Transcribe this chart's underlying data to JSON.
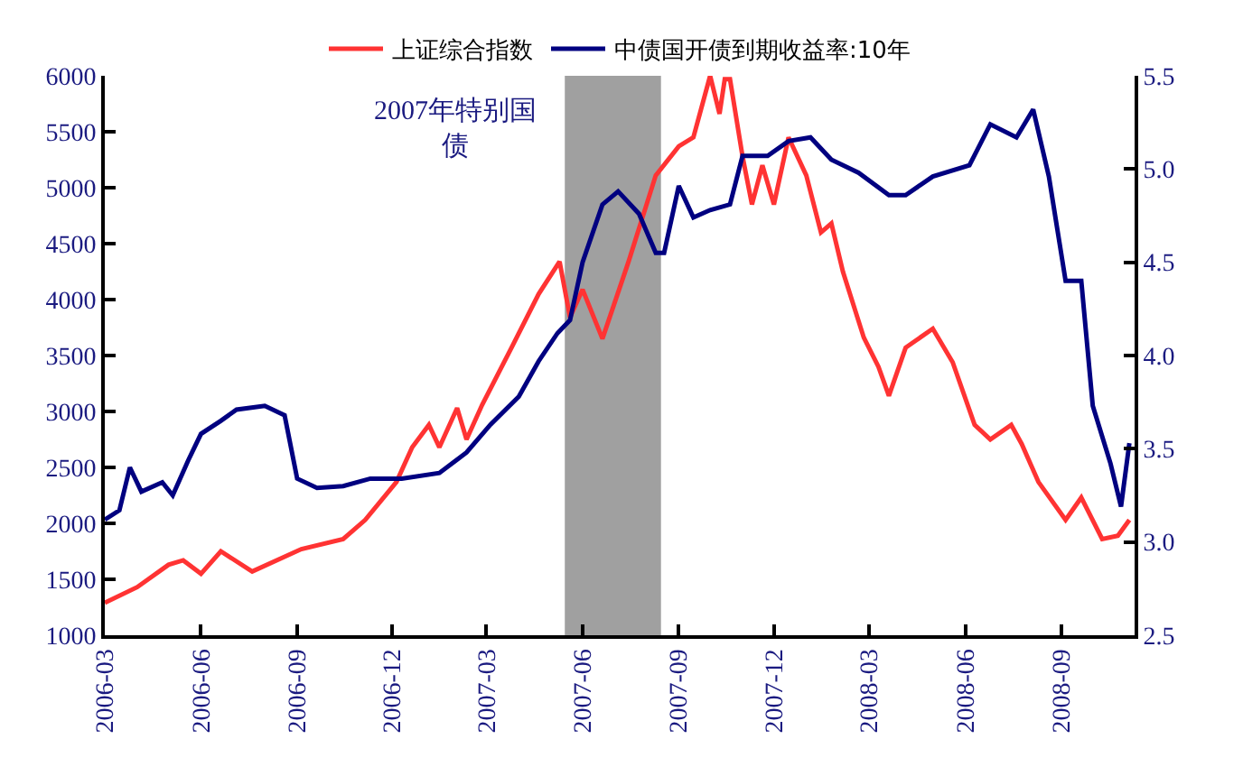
{
  "chart_data": {
    "type": "line",
    "legend": "top",
    "grid": false,
    "xlim": [
      "2006-03-01",
      "2008-11-10"
    ],
    "xticks": [
      "2006-03",
      "2006-06",
      "2006-09",
      "2006-12",
      "2007-03",
      "2007-06",
      "2007-09",
      "2007-12",
      "2008-03",
      "2008-06",
      "2008-09"
    ],
    "ylim": [
      1000,
      6000
    ],
    "yticks": [
      1000,
      1500,
      2000,
      2500,
      3000,
      3500,
      4000,
      4500,
      5000,
      5500,
      6000
    ],
    "y2lim": [
      2.5,
      5.5
    ],
    "y2ticks": [
      2.5,
      {
        "value": 3,
        "label": "3.0"
      },
      3.5,
      {
        "value": 4,
        "label": "4.0"
      },
      4.5,
      {
        "value": 5,
        "label": "5.0"
      },
      5.5
    ],
    "bands": [
      {
        "axis": "x",
        "from": "2007-05-15",
        "to": "2007-08-15",
        "label": "2007年特别国债",
        "color": "#a0a0a0"
      }
    ],
    "series": [
      {
        "name": "上证综合指数",
        "color": "#ff3333",
        "x": [
          "2006-03-01",
          "2006-04-01",
          "2006-05-01",
          "2006-05-15",
          "2006-06-01",
          "2006-06-20",
          "2006-07-20",
          "2006-09-05",
          "2006-10-15",
          "2006-11-05",
          "2006-12-05",
          "2006-12-20",
          "2007-01-05",
          "2007-01-15",
          "2007-02-01",
          "2007-02-10",
          "2007-02-25",
          "2007-03-25",
          "2007-04-20",
          "2007-05-10",
          "2007-05-20",
          "2007-06-01",
          "2007-06-20",
          "2007-07-15",
          "2007-08-10",
          "2007-09-01",
          "2007-09-15",
          "2007-10-01",
          "2007-10-10",
          "2007-10-15",
          "2007-10-20",
          "2007-11-01",
          "2007-11-10",
          "2007-11-20",
          "2007-12-01",
          "2007-12-15",
          "2008-01-01",
          "2008-01-15",
          "2008-01-25",
          "2008-02-05",
          "2008-02-25",
          "2008-03-10",
          "2008-03-20",
          "2008-04-05",
          "2008-05-01",
          "2008-05-20",
          "2008-06-10",
          "2008-06-25",
          "2008-07-15",
          "2008-07-25",
          "2008-08-10",
          "2008-09-05",
          "2008-09-20",
          "2008-10-10",
          "2008-10-25",
          "2008-11-05"
        ],
        "values": [
          1290,
          1430,
          1630,
          1670,
          1550,
          1750,
          1570,
          1770,
          1860,
          2030,
          2370,
          2680,
          2880,
          2680,
          3030,
          2750,
          3060,
          3570,
          4050,
          4340,
          3840,
          4090,
          3650,
          4340,
          5110,
          5370,
          5450,
          6000,
          5660,
          5970,
          5970,
          5280,
          4850,
          5200,
          4850,
          5450,
          5110,
          4600,
          4680,
          4250,
          3660,
          3400,
          3140,
          3570,
          3740,
          3440,
          2880,
          2750,
          2880,
          2710,
          2370,
          2030,
          2230,
          1860,
          1890,
          2030
        ]
      },
      {
        "name": "中债国开债到期收益率:10年",
        "color": "#000080",
        "axis": "y2",
        "x": [
          "2006-03-01",
          "2006-03-15",
          "2006-03-25",
          "2006-04-05",
          "2006-04-25",
          "2006-05-05",
          "2006-05-20",
          "2006-06-01",
          "2006-06-20",
          "2006-07-05",
          "2006-08-01",
          "2006-08-20",
          "2006-09-01",
          "2006-09-20",
          "2006-10-15",
          "2006-11-10",
          "2006-12-10",
          "2007-01-15",
          "2007-02-10",
          "2007-03-05",
          "2007-04-01",
          "2007-04-20",
          "2007-05-08",
          "2007-05-20",
          "2007-06-01",
          "2007-06-20",
          "2007-07-05",
          "2007-07-25",
          "2007-08-10",
          "2007-08-18",
          "2007-09-01",
          "2007-09-15",
          "2007-10-01",
          "2007-10-20",
          "2007-11-01",
          "2007-11-25",
          "2007-12-15",
          "2008-01-05",
          "2008-01-25",
          "2008-02-20",
          "2008-03-20",
          "2008-04-05",
          "2008-05-01",
          "2008-06-05",
          "2008-06-25",
          "2008-07-20",
          "2008-08-05",
          "2008-08-20",
          "2008-09-05",
          "2008-09-20",
          "2008-10-01",
          "2008-10-18",
          "2008-10-28",
          "2008-11-05"
        ],
        "values": [
          3.12,
          3.17,
          3.4,
          3.27,
          3.32,
          3.25,
          3.44,
          3.58,
          3.65,
          3.71,
          3.73,
          3.68,
          3.34,
          3.29,
          3.3,
          3.34,
          3.34,
          3.37,
          3.48,
          3.63,
          3.78,
          3.97,
          4.12,
          4.19,
          4.5,
          4.81,
          4.88,
          4.76,
          4.55,
          4.55,
          4.91,
          4.74,
          4.78,
          4.81,
          5.07,
          5.07,
          5.15,
          5.17,
          5.05,
          4.98,
          4.86,
          4.86,
          4.96,
          5.02,
          5.24,
          5.17,
          5.32,
          4.96,
          4.4,
          4.4,
          3.73,
          3.42,
          3.19,
          3.53
        ]
      }
    ]
  }
}
